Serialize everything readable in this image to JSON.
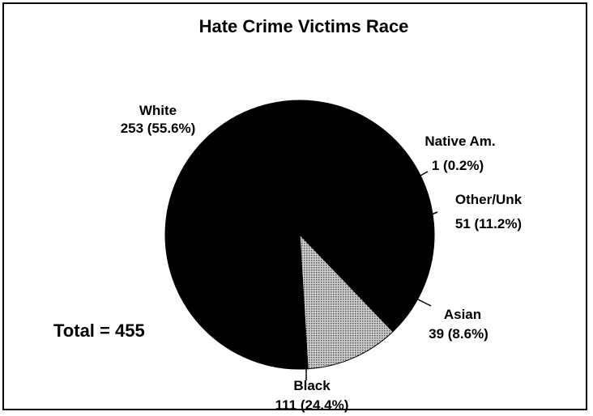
{
  "chart_data": {
    "type": "pie",
    "title": "Hate Crime Victims Race",
    "total_label": "Total = 455",
    "slices": [
      {
        "name": "White",
        "value": 253,
        "label": "253  (55.6%)",
        "color": "#000000"
      },
      {
        "name": "Native Am.",
        "value": 1,
        "label": "1  (0.2%)",
        "color": "#000000"
      },
      {
        "name": "Other/Unk",
        "value": 51,
        "label": "51  (11.2%)",
        "color": "#8a8a8a"
      },
      {
        "name": "Asian",
        "value": 39,
        "label": "39  (8.6%)",
        "color": "#000000"
      },
      {
        "name": "Black",
        "value": 111,
        "label": "111  (24.4%)",
        "color": "#000000"
      }
    ]
  }
}
